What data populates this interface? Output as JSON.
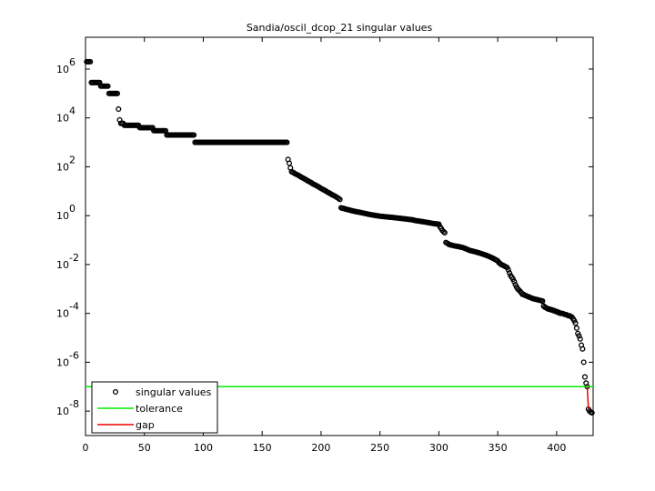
{
  "chart_data": {
    "type": "scatter",
    "title": "Sandia/oscil_dcop_21 singular values",
    "yscale": "log",
    "legend": "lower left",
    "grid": false,
    "xlim": [
      0,
      431
    ],
    "xticks": [
      0,
      50,
      100,
      150,
      200,
      250,
      300,
      350,
      400
    ],
    "ylim": [
      1e-09,
      20000000.0
    ],
    "yticks": [
      {
        "value": 1e-08,
        "label": "10",
        "exponent": "-8"
      },
      {
        "value": 1e-06,
        "label": "10",
        "exponent": "-6"
      },
      {
        "value": 0.0001,
        "label": "10",
        "exponent": "-4"
      },
      {
        "value": 0.01,
        "label": "10",
        "exponent": "-2"
      },
      {
        "value": 1,
        "label": "10",
        "exponent": "0"
      },
      {
        "value": 100,
        "label": "10",
        "exponent": "2"
      },
      {
        "value": 10000,
        "label": "10",
        "exponent": "4"
      },
      {
        "value": 1000000,
        "label": "10",
        "exponent": "6"
      }
    ],
    "series": [
      {
        "name": "singular values",
        "color": "#000000",
        "kind": "points",
        "x": [
          1,
          2,
          3,
          4,
          5,
          6,
          7,
          8,
          9,
          10,
          11,
          12,
          13,
          14,
          15,
          16,
          17,
          18,
          19,
          20,
          21,
          22,
          23,
          24,
          25,
          26,
          27,
          28,
          29,
          30,
          31,
          32,
          33,
          34,
          35,
          36,
          37,
          38,
          39,
          40,
          41,
          42,
          43,
          44,
          45,
          46,
          47,
          48,
          49,
          50,
          51,
          52,
          53,
          54,
          55,
          56,
          57,
          58,
          59,
          60,
          61,
          62,
          63,
          64,
          65,
          66,
          67,
          68,
          69,
          70,
          71,
          72,
          73,
          74,
          75,
          76,
          77,
          78,
          79,
          80,
          81,
          82,
          83,
          84,
          85,
          86,
          87,
          88,
          89,
          90,
          91,
          92,
          93,
          94,
          95,
          96,
          97,
          98,
          99,
          100,
          101,
          102,
          103,
          104,
          105,
          106,
          107,
          108,
          109,
          110,
          111,
          112,
          113,
          114,
          115,
          116,
          117,
          118,
          119,
          120,
          121,
          122,
          123,
          124,
          125,
          126,
          127,
          128,
          129,
          130,
          131,
          132,
          133,
          134,
          135,
          136,
          137,
          138,
          139,
          140,
          141,
          142,
          143,
          144,
          145,
          146,
          147,
          148,
          149,
          150,
          151,
          152,
          153,
          154,
          155,
          156,
          157,
          158,
          159,
          160,
          161,
          162,
          163,
          164,
          165,
          166,
          167,
          168,
          169,
          170,
          171,
          172,
          173,
          174,
          175,
          176,
          177,
          178,
          179,
          180,
          181,
          182,
          183,
          184,
          185,
          186,
          187,
          188,
          189,
          190,
          191,
          192,
          193,
          194,
          195,
          196,
          197,
          198,
          199,
          200,
          201,
          202,
          203,
          204,
          205,
          206,
          207,
          208,
          209,
          210,
          211,
          212,
          213,
          214,
          215,
          216,
          217,
          218,
          219,
          220,
          221,
          222,
          223,
          224,
          225,
          226,
          227,
          228,
          229,
          230,
          231,
          232,
          233,
          234,
          235,
          236,
          237,
          238,
          239,
          240,
          241,
          242,
          243,
          244,
          245,
          246,
          247,
          248,
          249,
          250,
          251,
          252,
          253,
          254,
          255,
          256,
          257,
          258,
          259,
          260,
          261,
          262,
          263,
          264,
          265,
          266,
          267,
          268,
          269,
          270,
          271,
          272,
          273,
          274,
          275,
          276,
          277,
          278,
          279,
          280,
          281,
          282,
          283,
          284,
          285,
          286,
          287,
          288,
          289,
          290,
          291,
          292,
          293,
          294,
          295,
          296,
          297,
          298,
          299,
          300,
          301,
          302,
          303,
          304,
          305,
          306,
          307,
          308,
          309,
          310,
          311,
          312,
          313,
          314,
          315,
          316,
          317,
          318,
          319,
          320,
          321,
          322,
          323,
          324,
          325,
          326,
          327,
          328,
          329,
          330,
          331,
          332,
          333,
          334,
          335,
          336,
          337,
          338,
          339,
          340,
          341,
          342,
          343,
          344,
          345,
          346,
          347,
          348,
          349,
          350,
          351,
          352,
          353,
          354,
          355,
          356,
          357,
          358,
          359,
          360,
          361,
          362,
          363,
          364,
          365,
          366,
          367,
          368,
          369,
          370,
          371,
          372,
          373,
          374,
          375,
          376,
          377,
          378,
          379,
          380,
          381,
          382,
          383,
          384,
          385,
          386,
          387,
          388,
          389,
          390,
          391,
          392,
          393,
          394,
          395,
          396,
          397,
          398,
          399,
          400,
          401,
          402,
          403,
          404,
          405,
          406,
          407,
          408,
          409,
          410,
          411,
          412,
          413,
          414,
          415,
          416,
          417,
          418,
          419,
          420,
          421,
          422,
          423,
          424,
          425,
          426,
          427,
          428,
          429,
          430
        ],
        "values": [
          2000000.0,
          2000000.0,
          2000000.0,
          2000000.0,
          280000.0,
          280000.0,
          280000.0,
          280000.0,
          280000.0,
          280000.0,
          280000.0,
          280000.0,
          200000.0,
          200000.0,
          200000.0,
          200000.0,
          200000.0,
          200000.0,
          200000.0,
          100000.0,
          100000.0,
          100000.0,
          100000.0,
          100000.0,
          100000.0,
          100000.0,
          100000.0,
          23000.0,
          8300.0,
          6000.0,
          6000.0,
          6000.0,
          5000.0,
          5000.0,
          5000.0,
          5000.0,
          5000.0,
          5000.0,
          5000.0,
          5000.0,
          5000.0,
          5000.0,
          5000.0,
          5000.0,
          5000.0,
          4000.0,
          4000.0,
          4000.0,
          4000.0,
          4000.0,
          4000.0,
          4000.0,
          4000.0,
          4000.0,
          4000.0,
          4000.0,
          4000.0,
          3000.0,
          3000.0,
          3000.0,
          3000.0,
          3000.0,
          3000.0,
          3000.0,
          3000.0,
          3000.0,
          3000.0,
          3000.0,
          2000.0,
          2000.0,
          2000.0,
          2000.0,
          2000.0,
          2000.0,
          2000.0,
          2000.0,
          2000.0,
          2000.0,
          2000.0,
          2000.0,
          2000.0,
          2000.0,
          2000.0,
          2000.0,
          2000.0,
          2000.0,
          2000.0,
          2000.0,
          2000.0,
          2000.0,
          2000.0,
          2000.0,
          1000.0,
          1000.0,
          1000.0,
          1000.0,
          1000.0,
          1000.0,
          1000.0,
          1000.0,
          1000.0,
          1000.0,
          1000.0,
          1000.0,
          1000.0,
          1000.0,
          1000.0,
          1000.0,
          1000.0,
          1000.0,
          1000.0,
          1000.0,
          1000.0,
          1000.0,
          1000.0,
          1000.0,
          1000.0,
          1000.0,
          1000.0,
          1000.0,
          1000.0,
          1000.0,
          1000.0,
          1000.0,
          1000.0,
          1000.0,
          1000.0,
          1000.0,
          1000.0,
          1000.0,
          1000.0,
          1000.0,
          1000.0,
          1000.0,
          1000.0,
          1000.0,
          1000.0,
          1000.0,
          1000.0,
          1000.0,
          1000.0,
          1000.0,
          1000.0,
          1000.0,
          1000.0,
          1000.0,
          1000.0,
          1000.0,
          1000.0,
          1000.0,
          1000.0,
          1000.0,
          1000.0,
          1000.0,
          1000.0,
          1000.0,
          1000.0,
          1000.0,
          1000.0,
          1000.0,
          1000.0,
          1000.0,
          1000.0,
          1000.0,
          1000.0,
          1000.0,
          1000.0,
          1000.0,
          1000.0,
          1000.0,
          1000.0,
          200,
          140,
          90,
          63,
          59,
          56,
          52,
          49,
          47,
          44,
          41,
          38,
          36,
          34,
          32,
          30,
          28,
          26,
          25,
          23,
          22,
          20,
          19,
          18,
          17,
          16,
          15,
          14,
          13,
          12.3,
          11.5,
          11,
          10.2,
          9.5,
          8.9,
          8.5,
          7.9,
          7.4,
          6.9,
          6.6,
          6.2,
          5.8,
          5.4,
          5.0,
          4.6,
          2.1,
          2.0,
          2.0,
          1.9,
          1.85,
          1.8,
          1.75,
          1.7,
          1.65,
          1.6,
          1.56,
          1.52,
          1.48,
          1.45,
          1.42,
          1.39,
          1.36,
          1.33,
          1.3,
          1.27,
          1.24,
          1.21,
          1.18,
          1.15,
          1.13,
          1.1,
          1.08,
          1.06,
          1.04,
          1.02,
          1.0,
          0.99,
          0.97,
          0.95,
          0.94,
          0.93,
          0.92,
          0.91,
          0.9,
          0.89,
          0.88,
          0.87,
          0.86,
          0.85,
          0.84,
          0.83,
          0.82,
          0.81,
          0.8,
          0.79,
          0.78,
          0.77,
          0.76,
          0.75,
          0.74,
          0.73,
          0.72,
          0.71,
          0.7,
          0.69,
          0.68,
          0.67,
          0.65,
          0.63,
          0.62,
          0.61,
          0.6,
          0.59,
          0.58,
          0.57,
          0.56,
          0.55,
          0.54,
          0.53,
          0.52,
          0.51,
          0.5,
          0.49,
          0.48,
          0.47,
          0.46,
          0.46,
          0.45,
          0.45,
          0.35,
          0.3,
          0.25,
          0.22,
          0.2,
          0.08,
          0.075,
          0.07,
          0.065,
          0.063,
          0.062,
          0.06,
          0.058,
          0.057,
          0.056,
          0.055,
          0.054,
          0.052,
          0.051,
          0.05,
          0.048,
          0.046,
          0.044,
          0.042,
          0.04,
          0.038,
          0.037,
          0.036,
          0.035,
          0.034,
          0.033,
          0.032,
          0.031,
          0.03,
          0.029,
          0.028,
          0.027,
          0.026,
          0.025,
          0.024,
          0.023,
          0.022,
          0.021,
          0.02,
          0.019,
          0.018,
          0.017,
          0.016,
          0.015,
          0.014,
          0.012,
          0.011,
          0.01,
          0.0095,
          0.009,
          0.0085,
          0.008,
          0.0075,
          0.006,
          0.0045,
          0.0035,
          0.003,
          0.0025,
          0.002,
          0.0015,
          0.0012,
          0.001,
          0.0009,
          0.0008,
          0.0007,
          0.0006,
          0.0006,
          0.00055,
          0.00053,
          0.0005,
          0.00048,
          0.00046,
          0.00044,
          0.00042,
          0.0004,
          0.00039,
          0.00038,
          0.00037,
          0.00036,
          0.00035,
          0.00034,
          0.00033,
          0.00032,
          0.0002,
          0.00018,
          0.00017,
          0.00016,
          0.00015,
          0.00015,
          0.00014,
          0.00014,
          0.00013,
          0.00013,
          0.00012,
          0.00012,
          0.00011,
          0.00011,
          0.0001,
          0.0001,
          0.0001,
          9.5e-05,
          9e-05,
          9e-05,
          8.5e-05,
          8e-05,
          8e-05,
          7.5e-05,
          7e-05,
          6e-05,
          5e-05,
          4e-05,
          2.5e-05,
          1.5e-05,
          1.2e-05,
          9e-06,
          5e-06,
          3.5e-06,
          1e-06,
          2.5e-07,
          1.4e-07,
          1e-07,
          1.2e-08,
          1e-08,
          9e-09,
          8.5e-09
        ]
      },
      {
        "name": "tolerance",
        "color": "#00ee00",
        "kind": "hline",
        "values": [
          1e-07
        ]
      },
      {
        "name": "gap",
        "color": "#ee0000",
        "kind": "line",
        "x": [
          426,
          427
        ],
        "values": [
          1e-07,
          1.2e-08
        ]
      }
    ]
  }
}
